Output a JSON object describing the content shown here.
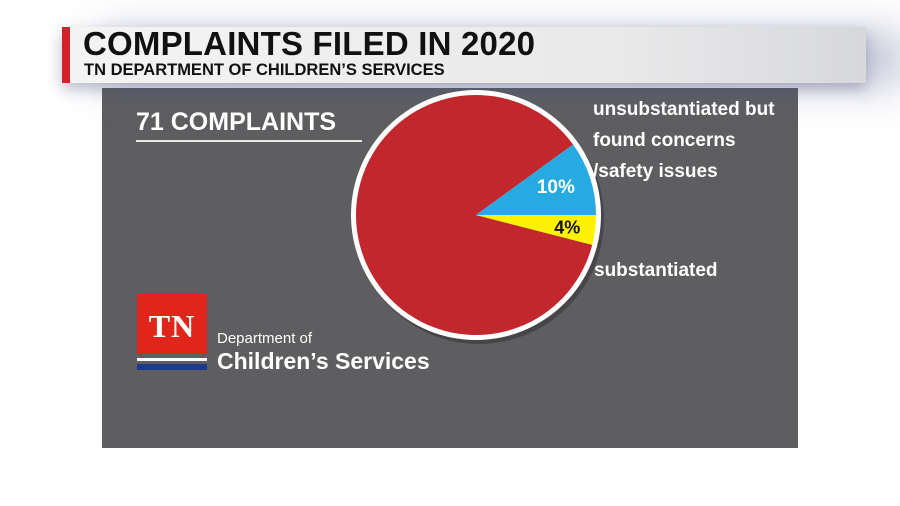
{
  "header": {
    "title": "COMPLAINTS FILED IN 2020",
    "subtitle": "TN DEPARTMENT OF CHILDREN’S SERVICES"
  },
  "total_label": "71 COMPLAINTS",
  "logo": {
    "mark": "TN",
    "line1": "Department of",
    "line2": "Children’s Services"
  },
  "chart_data": {
    "type": "pie",
    "slices": [
      {
        "label": "",
        "value": 86,
        "display": "",
        "color": "#c1272d"
      },
      {
        "label": "unsubstantiated but found concerns /safety issues",
        "value": 10,
        "display": "10%",
        "color": "#27a9e1"
      },
      {
        "label": "substantiated",
        "value": 4,
        "display": "4%",
        "color": "#fff200"
      }
    ]
  }
}
